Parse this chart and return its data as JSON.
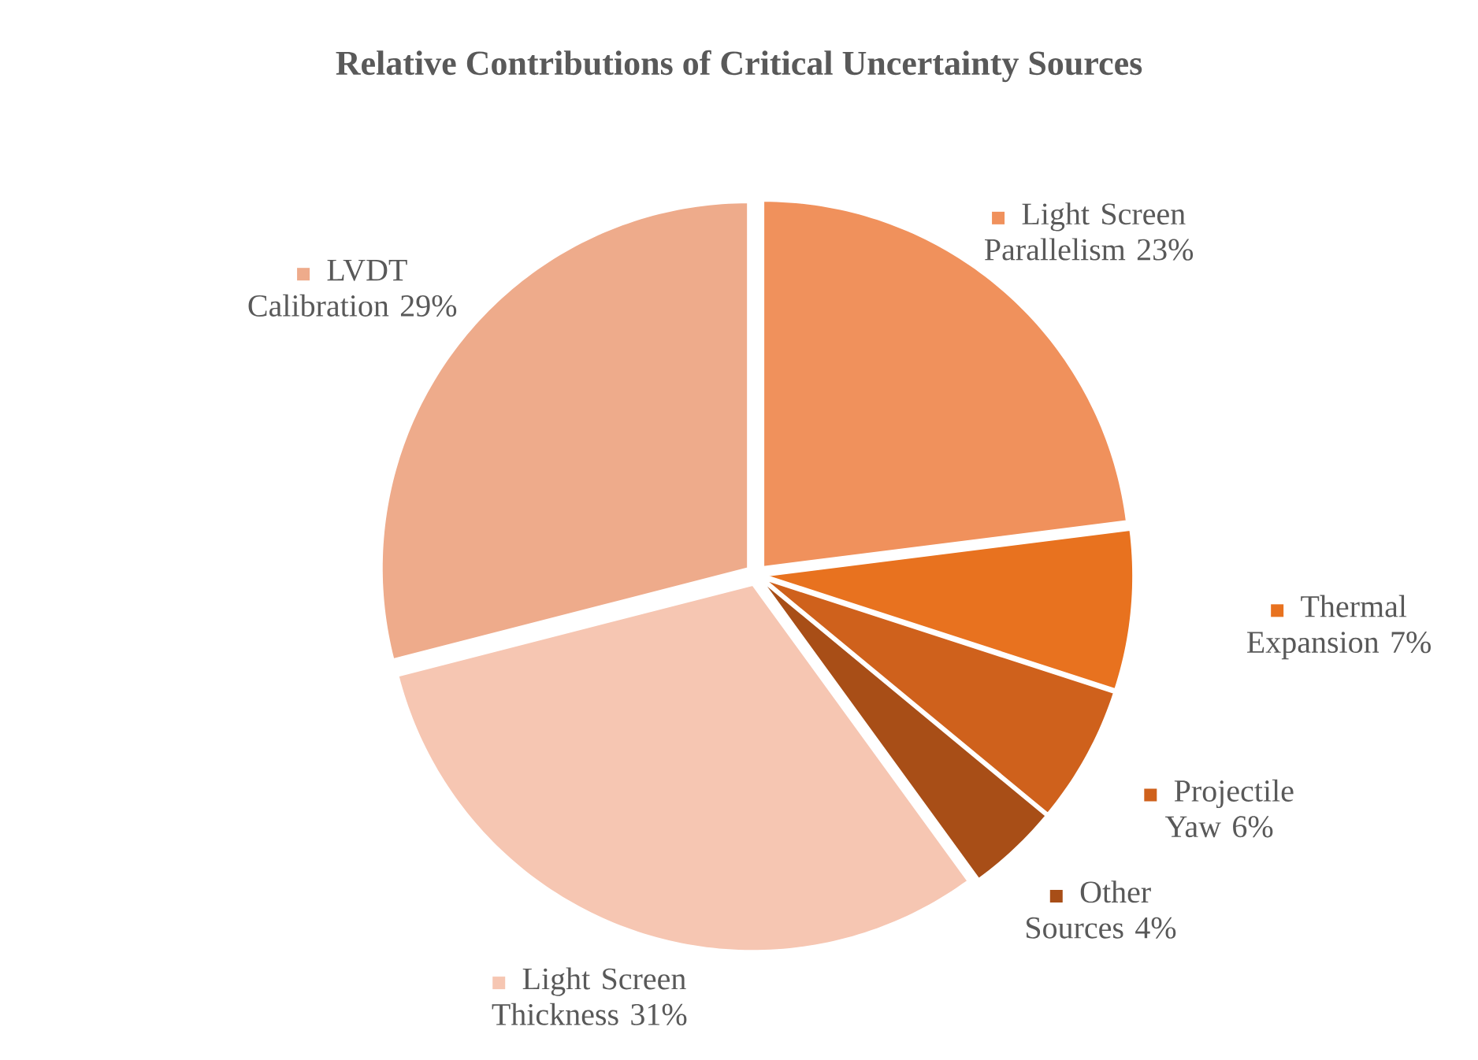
{
  "chart_data": {
    "type": "pie",
    "title": "Relative Contributions of Critical Uncertainty Sources",
    "categories": [
      "Light Screen Parallelism",
      "Thermal Expansion",
      "Projectile Yaw",
      "Other Sources",
      "Light Screen Thickness",
      "LVDT Calibration"
    ],
    "values": [
      23,
      7,
      6,
      4,
      31,
      29
    ],
    "value_labels": [
      "23%",
      "7%",
      "6%",
      "4%",
      "31%",
      "29%"
    ],
    "legend": "right",
    "colors": [
      "#f0915c",
      "#e8721f",
      "#cf611c",
      "#a84e17",
      "#f6c6b2",
      "#eeab8b"
    ]
  }
}
